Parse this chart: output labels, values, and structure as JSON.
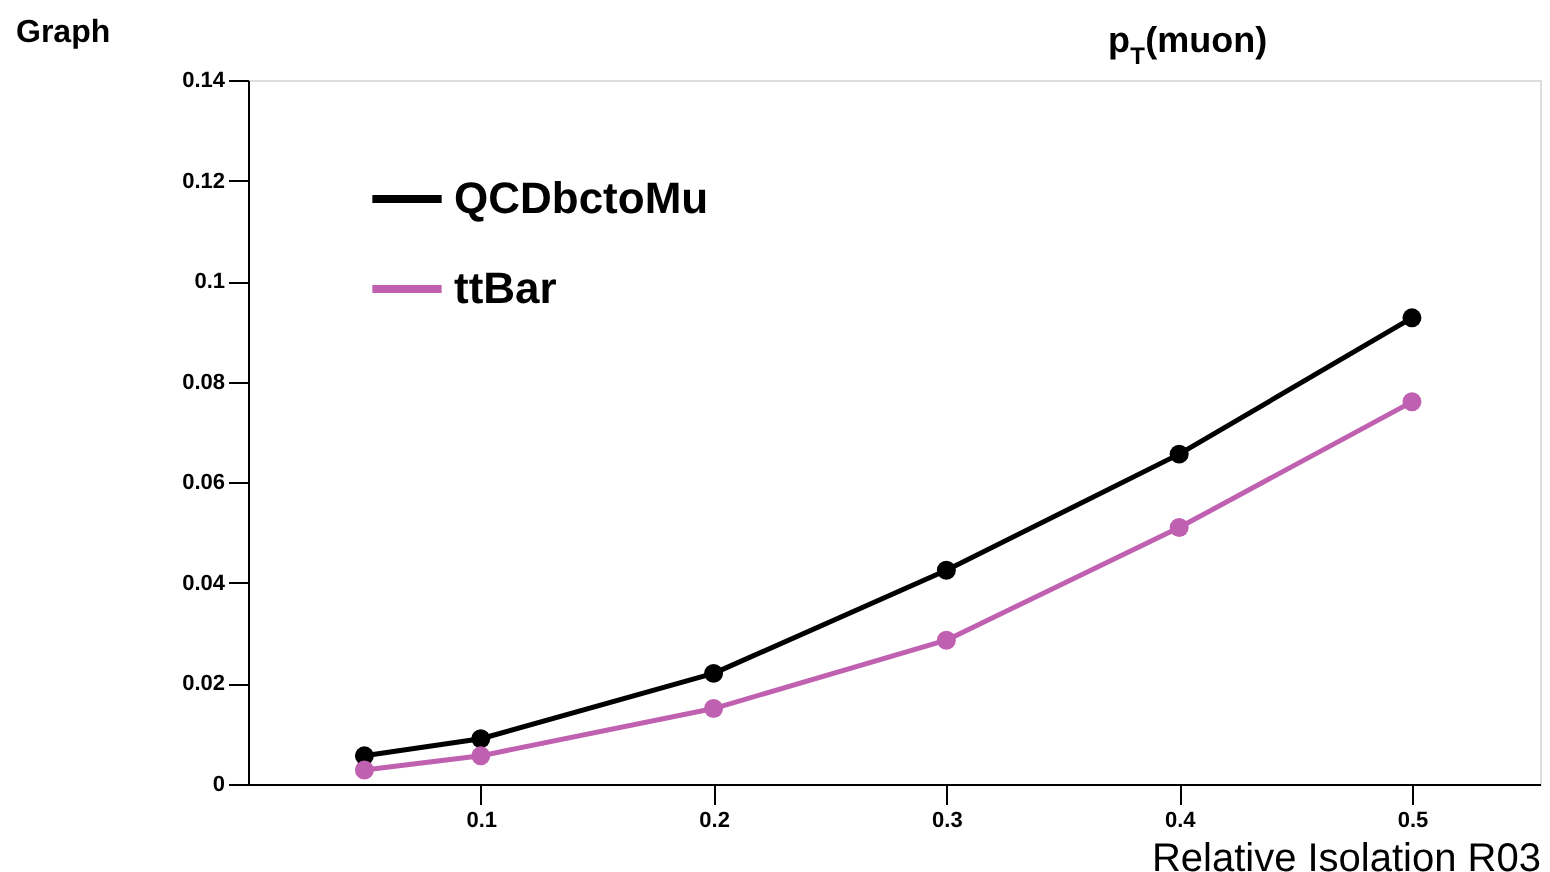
{
  "chart_data": {
    "type": "line",
    "title": "p$_{T}$(muon)",
    "xlabel": "Relative Isolation R03",
    "x": [
      0.05,
      0.1,
      0.2,
      0.3,
      0.4,
      0.5
    ],
    "series": [
      {
        "name": "QCDbctoMu",
        "color": "#000000",
        "values": [
          0.0056,
          0.009,
          0.022,
          0.0425,
          0.0656,
          0.0927
        ]
      },
      {
        "name": "ttBar",
        "color": "#c060b0",
        "values": [
          0.0028,
          0.0056,
          0.015,
          0.0286,
          0.051,
          0.076
        ]
      }
    ],
    "xlim": [
      0,
      0.555
    ],
    "ylim": [
      0,
      0.14
    ],
    "xticks": [
      0.1,
      0.2,
      0.3,
      0.4,
      0.5
    ],
    "yticks": [
      0,
      0.02,
      0.04,
      0.06,
      0.08,
      0.1,
      0.12,
      0.14
    ],
    "annotations": [
      "Graph"
    ],
    "grid": false,
    "legend": "top left",
    "marker": "circle",
    "line_style": "solid"
  }
}
